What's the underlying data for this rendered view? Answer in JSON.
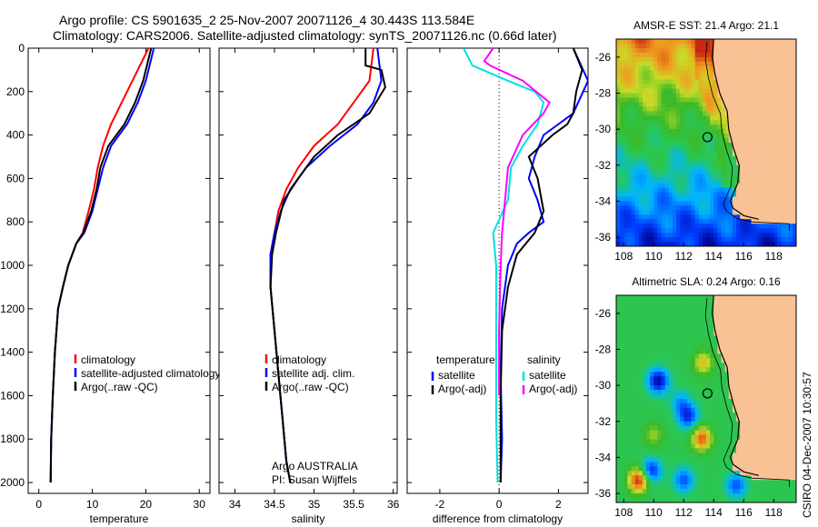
{
  "header": {
    "title_line1": "Argo profile: CS 5901635_2 25-Nov-2007 20071126_4 30.443S 113.584E",
    "title_line2": "Climatology: CARS2006. Satellite-adjusted climatology: synTS_20071126.nc (0.66d later)"
  },
  "colors": {
    "climatology": "#ff0000",
    "satellite": "#0000ff",
    "argo": "#000000",
    "salinity_satellite": "#00e0e0",
    "salinity_argo": "#ff00ff",
    "land": "#f9c295",
    "coastline": "#000000"
  },
  "side_label": "CSIRO 04-Dec-2007 10:30:57",
  "chart_data": [
    {
      "id": "temperature",
      "type": "line",
      "xlabel": "temperature",
      "ylabel": "",
      "xlim": [
        -2,
        32
      ],
      "ylim": [
        2050,
        0
      ],
      "xticks": [
        0,
        10,
        20,
        30
      ],
      "yticks": [
        0,
        200,
        400,
        600,
        800,
        1000,
        1200,
        1400,
        1600,
        1800,
        2000
      ],
      "legend": {
        "position": "lower-right",
        "entries": [
          "climatology",
          "satellite-adjusted climatology",
          "Argo(..raw -QC)"
        ]
      },
      "series": [
        {
          "name": "climatology",
          "color": "#ff0000",
          "x": [
            20.5,
            19.5,
            17.5,
            15.5,
            13.5,
            12.0,
            11.0,
            10.3,
            9.3,
            8.2,
            7.0,
            5.5,
            4.5,
            3.6,
            3.0,
            2.6,
            2.3,
            2.2
          ],
          "y": [
            0,
            50,
            150,
            250,
            350,
            450,
            550,
            650,
            750,
            850,
            900,
            1000,
            1100,
            1200,
            1400,
            1600,
            1800,
            2000
          ]
        },
        {
          "name": "satellite-adjusted climatology",
          "color": "#0000ff",
          "x": [
            21.5,
            21.0,
            20.0,
            18.5,
            16.5,
            13.5,
            12.0,
            11.0,
            10.0,
            8.5,
            7.0,
            5.5,
            4.5,
            3.6,
            3.0,
            2.6,
            2.3,
            2.2
          ],
          "y": [
            0,
            50,
            150,
            250,
            350,
            450,
            550,
            650,
            750,
            850,
            900,
            1000,
            1100,
            1200,
            1400,
            1600,
            1800,
            2000
          ]
        },
        {
          "name": "Argo(..raw -QC)",
          "color": "#000000",
          "x": [
            21.0,
            20.5,
            19.5,
            18.0,
            16.0,
            13.0,
            11.5,
            10.8,
            9.8,
            8.3,
            7.0,
            5.5,
            4.5,
            3.6,
            3.0,
            2.6,
            2.3,
            2.2
          ],
          "y": [
            0,
            50,
            150,
            250,
            350,
            450,
            550,
            650,
            750,
            850,
            900,
            1000,
            1100,
            1200,
            1400,
            1600,
            1800,
            2000
          ]
        }
      ]
    },
    {
      "id": "salinity",
      "type": "line",
      "xlabel": "salinity",
      "xlim": [
        33.8,
        36.05
      ],
      "ylim": [
        2050,
        0
      ],
      "xticks": [
        34,
        34.5,
        35,
        35.5,
        36
      ],
      "legend": {
        "position": "lower-right",
        "entries": [
          "climatology",
          "satellite adj. clim.",
          "Argo(..raw -QC)"
        ]
      },
      "annotations": [
        "Argo AUSTRALIA",
        "PI: Susan Wijffels"
      ],
      "series": [
        {
          "name": "climatology",
          "color": "#ff0000",
          "x": [
            35.75,
            35.7,
            35.5,
            35.3,
            35.0,
            34.8,
            34.65,
            34.55,
            34.5,
            34.45,
            34.45,
            34.5,
            34.55,
            34.6,
            34.65,
            34.7
          ],
          "y": [
            0,
            150,
            250,
            350,
            450,
            550,
            650,
            750,
            850,
            950,
            1100,
            1300,
            1500,
            1700,
            1900,
            2000
          ]
        },
        {
          "name": "satellite adj. clim.",
          "color": "#0000ff",
          "x": [
            35.8,
            35.85,
            35.75,
            35.55,
            35.2,
            34.9,
            34.7,
            34.58,
            34.5,
            34.45,
            34.45,
            34.5,
            34.55,
            34.6,
            34.65,
            34.7
          ],
          "y": [
            0,
            150,
            250,
            350,
            450,
            550,
            650,
            750,
            850,
            950,
            1100,
            1300,
            1500,
            1700,
            1900,
            2000
          ]
        },
        {
          "name": "Argo(..raw -QC)",
          "color": "#000000",
          "x": [
            35.65,
            35.65,
            35.85,
            35.9,
            35.7,
            35.3,
            35.0,
            34.8,
            34.62,
            34.52,
            34.47,
            34.45,
            34.5,
            34.55,
            34.6,
            34.65,
            34.7
          ],
          "y": [
            0,
            80,
            100,
            180,
            300,
            400,
            500,
            600,
            700,
            850,
            950,
            1100,
            1300,
            1500,
            1700,
            1900,
            2000
          ]
        }
      ]
    },
    {
      "id": "difference",
      "type": "line",
      "xlabel": "difference from climatology",
      "xlim": [
        -3.1,
        3.0
      ],
      "ylim": [
        2050,
        0
      ],
      "xticks": [
        -2,
        0,
        2
      ],
      "legend": {
        "position": "lower-right",
        "entries": [
          "temperature",
          "satellite",
          "Argo(-adj)",
          "salinity",
          "satellite",
          "Argo(-adj)"
        ]
      },
      "series": [
        {
          "name": "temperature satellite",
          "color": "#0000ff",
          "x": [
            2.5,
            3.0,
            2.5,
            1.5,
            1.2,
            1.0,
            1.3,
            1.5,
            1.0,
            0.6,
            0.3,
            0.1,
            0.05,
            0.1,
            0.05
          ],
          "y": [
            0,
            150,
            300,
            400,
            500,
            600,
            700,
            800,
            850,
            900,
            1000,
            1200,
            1500,
            1800,
            2000
          ]
        },
        {
          "name": "temperature Argo(-adj)",
          "color": "#000000",
          "x": [
            2.5,
            2.8,
            2.6,
            2.5,
            2.3,
            1.8,
            1.0,
            1.3,
            1.5,
            1.2,
            0.6,
            0.3,
            0.1,
            0.05,
            0.05
          ],
          "y": [
            0,
            100,
            200,
            300,
            350,
            400,
            500,
            600,
            750,
            850,
            950,
            1100,
            1300,
            1600,
            2000
          ]
        },
        {
          "name": "salinity satellite",
          "color": "#00e0e0",
          "x": [
            -1.2,
            -0.9,
            0.3,
            1.2,
            1.5,
            1.3,
            0.8,
            0.4,
            0.3,
            -0.2,
            -0.1,
            -0.1,
            -0.1,
            -0.05
          ],
          "y": [
            0,
            80,
            150,
            200,
            250,
            350,
            450,
            550,
            700,
            850,
            1000,
            1300,
            1700,
            2000
          ]
        },
        {
          "name": "salinity Argo(-adj)",
          "color": "#ff00ff",
          "x": [
            -0.2,
            -0.5,
            -0.3,
            0.8,
            1.7,
            1.5,
            0.8,
            0.3,
            0.2,
            0.1,
            0.05,
            0.0,
            0.0
          ],
          "y": [
            0,
            60,
            80,
            150,
            250,
            300,
            400,
            550,
            700,
            850,
            1000,
            1300,
            1600
          ]
        }
      ]
    },
    {
      "id": "sst_map",
      "type": "heatmap",
      "title": "AMSR-E SST: 21.4 Argo: 21.1",
      "xlim": [
        107.5,
        119.5
      ],
      "ylim": [
        -36.5,
        -25
      ],
      "xticks": [
        108,
        110,
        112,
        114,
        116,
        118
      ],
      "yticks": [
        -26,
        -28,
        -30,
        -32,
        -34,
        -36
      ],
      "marker": {
        "lon": 113.584,
        "lat": -30.443
      }
    },
    {
      "id": "sla_map",
      "type": "heatmap",
      "title": "Altimetric SLA: 0.24 Argo: 0.16",
      "xlim": [
        107.5,
        119.5
      ],
      "ylim": [
        -36.5,
        -25
      ],
      "xticks": [
        108,
        110,
        112,
        114,
        116,
        118
      ],
      "yticks": [
        -26,
        -28,
        -30,
        -32,
        -34,
        -36
      ],
      "marker": {
        "lon": 113.584,
        "lat": -30.443
      }
    }
  ]
}
